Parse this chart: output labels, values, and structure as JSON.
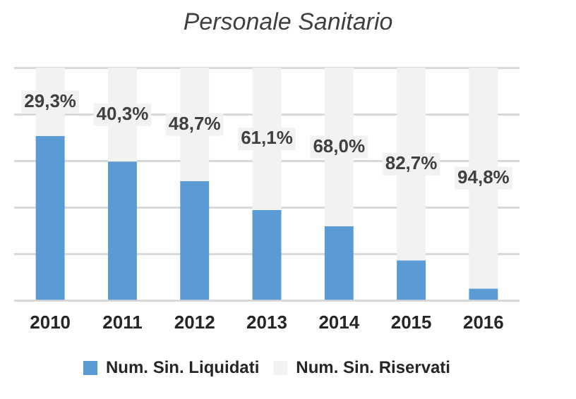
{
  "chart_data": {
    "type": "bar",
    "title": "Personale Sanitario",
    "stacked": true,
    "categories": [
      "2010",
      "2011",
      "2012",
      "2013",
      "2014",
      "2015",
      "2016"
    ],
    "series": [
      {
        "name": "Num. Sin. Liquidati",
        "color": "#5b9bd5",
        "values": [
          70.7,
          59.7,
          51.3,
          38.9,
          32.0,
          17.3,
          5.2
        ]
      },
      {
        "name": "Num. Sin. Riservati",
        "color": "#f2f2f2",
        "values": [
          29.3,
          40.3,
          48.7,
          61.1,
          68.0,
          82.7,
          94.8
        ],
        "value_labels": [
          "29,3%",
          "40,3%",
          "48,7%",
          "61,1%",
          "68,0%",
          "82,7%",
          "94,8%"
        ]
      }
    ],
    "ylim": [
      0,
      100
    ],
    "yticks": [
      {
        "value": 0,
        "label": null
      },
      {
        "value": 20,
        "label": null
      },
      {
        "value": 40,
        "label": null
      },
      {
        "value": 60,
        "label": null
      },
      {
        "value": 80,
        "label": null
      },
      {
        "value": 100,
        "label": null
      }
    ],
    "tick_labels": "x",
    "grid": "y",
    "legend": "bottom"
  }
}
